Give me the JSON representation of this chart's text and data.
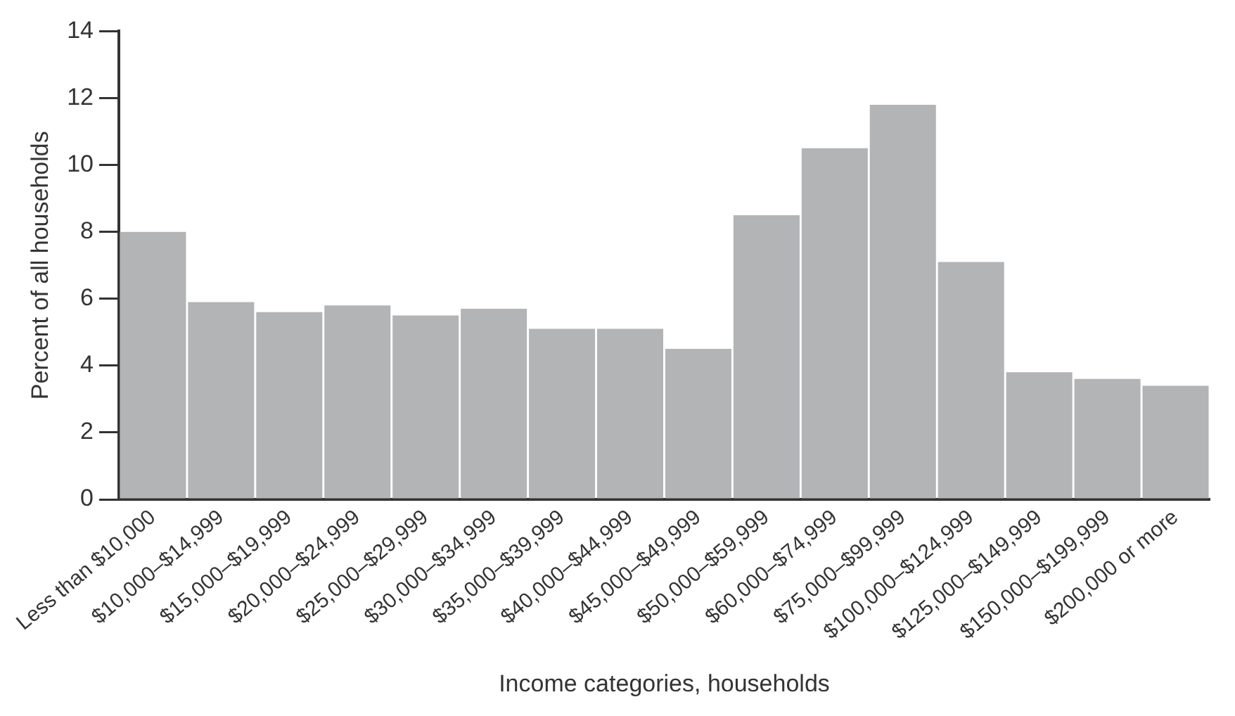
{
  "chart_data": {
    "type": "bar",
    "xlabel": "Income categories, households",
    "ylabel": "Percent of all households",
    "categories": [
      "Less than $10,000",
      "$10,000–$14,999",
      "$15,000–$19,999",
      "$20,000–$24,999",
      "$25,000–$29,999",
      "$30,000–$34,999",
      "$35,000–$39,999",
      "$40,000–$44,999",
      "$45,000–$49,999",
      "$50,000–$59,999",
      "$60,000–$74,999",
      "$75,000–$99,999",
      "$100,000–$124,999",
      "$125,000–$149,999",
      "$150,000–$199,999",
      "$200,000 or more"
    ],
    "values": [
      8.0,
      5.9,
      5.6,
      5.8,
      5.5,
      5.7,
      5.1,
      5.1,
      4.5,
      8.5,
      10.5,
      11.8,
      7.1,
      3.8,
      3.6,
      3.4
    ],
    "color": "#b3b4b6",
    "ylim": [
      0,
      14
    ],
    "yticks": [
      0,
      2,
      4,
      6,
      8,
      10,
      12,
      14
    ],
    "grid": false,
    "legend": false
  }
}
